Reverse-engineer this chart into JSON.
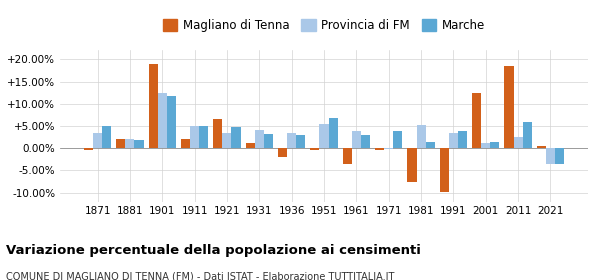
{
  "years": [
    1871,
    1881,
    1901,
    1911,
    1921,
    1931,
    1936,
    1951,
    1961,
    1971,
    1981,
    1991,
    2001,
    2011,
    2021
  ],
  "magliano": [
    -0.5,
    2.0,
    19.0,
    2.0,
    6.5,
    1.2,
    -2.0,
    -0.5,
    -3.5,
    -0.5,
    -7.5,
    -9.8,
    12.5,
    18.5,
    0.5
  ],
  "provincia": [
    3.5,
    2.0,
    12.5,
    5.0,
    3.5,
    4.0,
    3.5,
    5.5,
    3.8,
    -0.2,
    5.2,
    3.5,
    1.2,
    2.5,
    -3.5
  ],
  "marche": [
    5.0,
    1.8,
    11.8,
    5.0,
    4.8,
    3.2,
    3.0,
    6.7,
    3.0,
    3.8,
    1.5,
    3.8,
    1.5,
    6.0,
    -3.5
  ],
  "color_magliano": "#d2601a",
  "color_provincia": "#aac8e8",
  "color_marche": "#5ba8d4",
  "title": "Variazione percentuale della popolazione ai censimenti",
  "subtitle": "COMUNE DI MAGLIANO DI TENNA (FM) - Dati ISTAT - Elaborazione TUTTITALIA.IT",
  "ylim": [
    -12,
    22
  ],
  "yticks": [
    -10.0,
    -5.0,
    0.0,
    5.0,
    10.0,
    15.0,
    20.0
  ],
  "ytick_labels": [
    "-10.00%",
    "-5.00%",
    "0.00%",
    "+5.00%",
    "+10.00%",
    "+15.00%",
    "+20.00%"
  ],
  "legend_labels": [
    "Magliano di Tenna",
    "Provincia di FM",
    "Marche"
  ],
  "bar_width": 0.28
}
